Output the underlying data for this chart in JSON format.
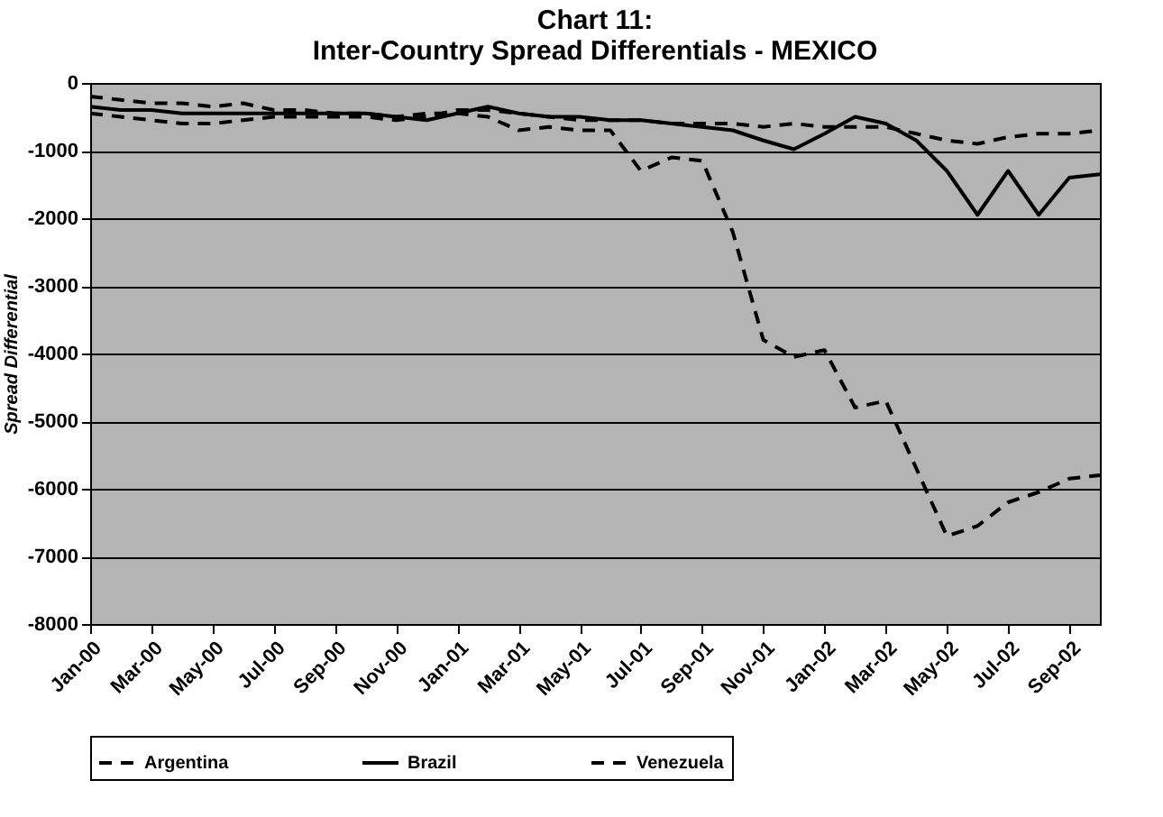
{
  "chart_data": {
    "type": "line",
    "title": "Chart 11:\nInter-Country Spread Differentials - MEXICO",
    "ylabel": "Spread Differential",
    "categories": [
      "Jan-00",
      null,
      "Mar-00",
      null,
      "May-00",
      null,
      "Jul-00",
      null,
      "Sep-00",
      null,
      "Nov-00",
      null,
      "Jan-01",
      null,
      "Mar-01",
      null,
      "May-01",
      null,
      "Jul-01",
      null,
      "Sep-01",
      null,
      "Nov-01",
      null,
      "Jan-02",
      null,
      "Mar-02",
      null,
      "May-02",
      null,
      "Jul-02",
      null,
      "Sep-02",
      null
    ],
    "series": [
      {
        "name": "Argentina",
        "color": "#000000",
        "line_style": "dashed",
        "values": [
          -200,
          -250,
          -300,
          -300,
          -350,
          -300,
          -400,
          -400,
          -450,
          -450,
          -500,
          -450,
          -450,
          -500,
          -700,
          -650,
          -700,
          -700,
          -1300,
          -1100,
          -1150,
          -2200,
          -3800,
          -4050,
          -3950,
          -4800,
          -4700,
          -5700,
          -6700,
          -6550,
          -6200,
          -6050,
          -5850,
          -5800
        ]
      },
      {
        "name": "Brazil",
        "color": "#000000",
        "line_style": "solid",
        "values": [
          -350,
          -400,
          -400,
          -450,
          -450,
          -450,
          -450,
          -450,
          -450,
          -450,
          -500,
          -550,
          -450,
          -350,
          -450,
          -500,
          -500,
          -550,
          -550,
          -600,
          -650,
          -700,
          -850,
          -980,
          -750,
          -500,
          -600,
          -850,
          -1300,
          -1950,
          -1300,
          -1950,
          -1400,
          -1350
        ]
      },
      {
        "name": "Venezuela",
        "color": "#000000",
        "line_style": "dashed",
        "values": [
          -450,
          -500,
          -550,
          -600,
          -600,
          -550,
          -500,
          -500,
          -500,
          -500,
          -550,
          -500,
          -400,
          -400,
          -450,
          -500,
          -550,
          -550,
          -550,
          -600,
          -600,
          -600,
          -650,
          -600,
          -650,
          -650,
          -650,
          -750,
          -850,
          -900,
          -800,
          -750,
          -750,
          -700
        ]
      }
    ],
    "ylim": [
      -8000,
      0
    ],
    "yticks": [
      0,
      -1000,
      -2000,
      -3000,
      -4000,
      -5000,
      -6000,
      -7000,
      -8000
    ],
    "grid": "y",
    "legend": "bottom",
    "marker": "none"
  }
}
